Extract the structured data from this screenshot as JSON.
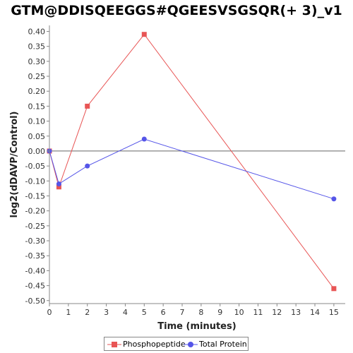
{
  "chart_data": {
    "type": "line",
    "title": "GTM@DDISQEEGGS#QGEESVSGSQR(+ 3)_v1",
    "xlabel": "Time (minutes)",
    "ylabel": "log2(dDAVP/Control)",
    "xlim": [
      0,
      15.6
    ],
    "ylim": [
      -0.51,
      0.42
    ],
    "xticks": [
      0,
      1,
      2,
      3,
      4,
      5,
      6,
      7,
      8,
      9,
      10,
      11,
      12,
      13,
      14,
      15
    ],
    "yticks": [
      -0.5,
      -0.45,
      -0.4,
      -0.35,
      -0.3,
      -0.25,
      -0.2,
      -0.15,
      -0.1,
      -0.05,
      0,
      0.05,
      0.1,
      0.15,
      0.2,
      0.25,
      0.3,
      0.35,
      0.4
    ],
    "ytick_labels": [
      "-0.50",
      "-0.45",
      "-0.40",
      "-0.35",
      "-0.30",
      "-0.25",
      "-0.20",
      "-0.15",
      "-0.10",
      "-0.05",
      "0.00",
      "0.05",
      "0.10",
      "0.15",
      "0.20",
      "0.25",
      "0.30",
      "0.35",
      "0.40"
    ],
    "reference_line_y": 0,
    "legend_position": "bottom",
    "grid": false,
    "series": [
      {
        "name": "Phosphopeptide",
        "marker": "square",
        "color": "#e85555",
        "x": [
          0,
          0.5,
          2,
          5,
          15
        ],
        "y": [
          0.0,
          -0.12,
          0.15,
          0.39,
          -0.46
        ]
      },
      {
        "name": "Total Protein",
        "marker": "circle",
        "color": "#5555e8",
        "x": [
          0,
          0.5,
          2,
          5,
          15
        ],
        "y": [
          0.0,
          -0.11,
          -0.05,
          0.04,
          -0.16
        ]
      }
    ]
  }
}
